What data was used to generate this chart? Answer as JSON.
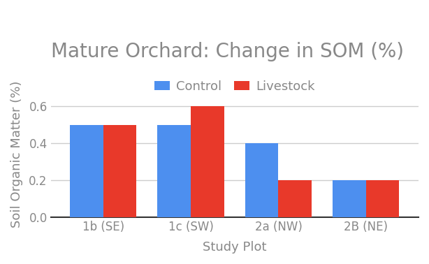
{
  "title": "Mature Orchard: Change in SOM (%)",
  "xlabel": "Study Plot",
  "ylabel": "Soil Organic Matter (%)",
  "categories": [
    "1b (SE)",
    "1c (SW)",
    "2a (NW)",
    "2B (NE)"
  ],
  "control_values": [
    0.5,
    0.5,
    0.4,
    0.2
  ],
  "livestock_values": [
    0.5,
    0.6,
    0.2,
    0.2
  ],
  "control_color": "#4d8fef",
  "livestock_color": "#e8392a",
  "ylim": [
    0.0,
    0.68
  ],
  "yticks": [
    0.0,
    0.2,
    0.4,
    0.6
  ],
  "background_color": "#ffffff",
  "grid_color": "#cccccc",
  "title_fontsize": 20,
  "label_fontsize": 13,
  "tick_fontsize": 12,
  "legend_fontsize": 13,
  "bar_width": 0.38,
  "legend_labels": [
    "Control",
    "Livestock"
  ],
  "text_color": "#888888"
}
